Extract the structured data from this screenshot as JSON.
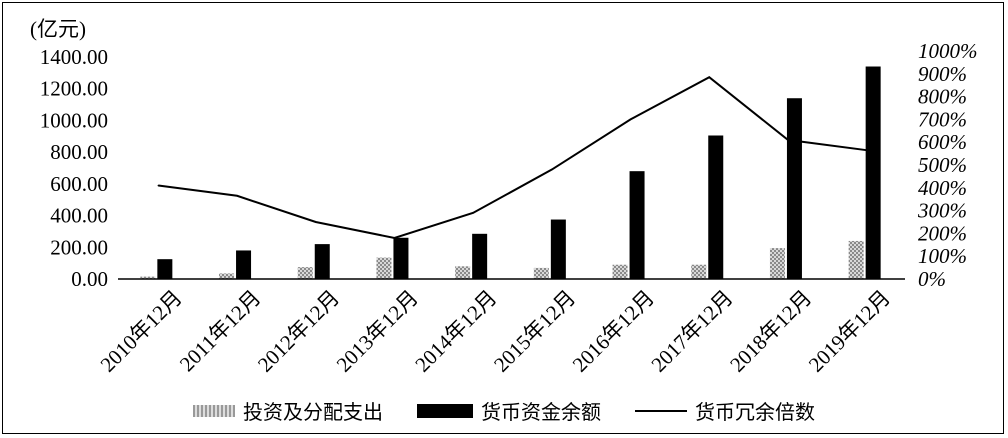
{
  "chart_data": {
    "type": "bar",
    "unit_label": "(亿元)",
    "categories": [
      "2010年12月",
      "2011年12月",
      "2012年12月",
      "2013年12月",
      "2014年12月",
      "2015年12月",
      "2016年12月",
      "2017年12月",
      "2018年12月",
      "2019年12月"
    ],
    "series": [
      {
        "name": "投资及分配支出",
        "type": "bar",
        "axis": "left",
        "values": [
          15,
          35,
          75,
          135,
          80,
          70,
          90,
          90,
          195,
          240
        ]
      },
      {
        "name": "货币资金余额",
        "type": "bar",
        "axis": "left",
        "values": [
          125,
          180,
          220,
          260,
          285,
          375,
          680,
          905,
          1140,
          1340
        ]
      },
      {
        "name": "货币冗余倍数",
        "type": "line",
        "axis": "right",
        "values": [
          4.1,
          3.65,
          2.5,
          1.8,
          2.9,
          4.8,
          7.0,
          8.85,
          6.1,
          5.65
        ]
      }
    ],
    "y_left": {
      "min": 0,
      "max": 1400,
      "ticks": [
        "0.00",
        "200.00",
        "400.00",
        "600.00",
        "800.00",
        "1000.00",
        "1200.00",
        "1400.00"
      ]
    },
    "y_right": {
      "min": 0,
      "max": 10,
      "ticks": [
        "0%",
        "100%",
        "200%",
        "300%",
        "400%",
        "500%",
        "600%",
        "700%",
        "800%",
        "900%",
        "1000%"
      ]
    },
    "grid": false,
    "legend_position": "bottom",
    "colors": {
      "bar_hatch_dark": "#8a8a8a",
      "bar_hatch_light": "#d8d8d8",
      "bar_solid": "#000000",
      "line": "#000000"
    }
  }
}
